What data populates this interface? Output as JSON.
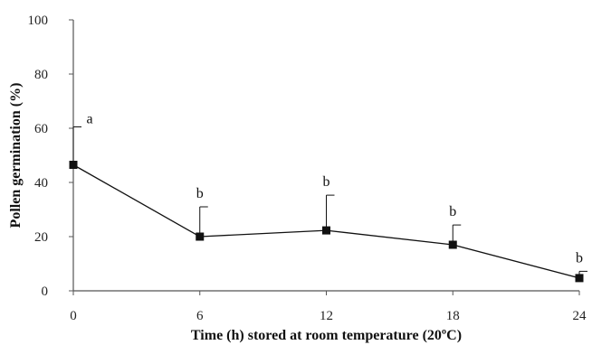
{
  "chart_data": {
    "type": "line",
    "xlabel": "Time (h) stored at room temperature (20ºC)",
    "ylabel": "Pollen germination (%)",
    "xlim": [
      0,
      24
    ],
    "ylim": [
      0,
      100
    ],
    "x_ticks": [
      0,
      6,
      12,
      18,
      24
    ],
    "y_ticks": [
      0,
      20,
      40,
      60,
      80,
      100
    ],
    "grid": false,
    "series": [
      {
        "x": [
          0,
          6,
          12,
          18,
          24
        ],
        "values": [
          46.5,
          20,
          22.3,
          17,
          4.7
        ],
        "error_upper": [
          14,
          11,
          13,
          7.3,
          2.5
        ],
        "labels": [
          "a",
          "b",
          "b",
          "b",
          "b"
        ],
        "color": "#111111",
        "marker": "square"
      }
    ]
  }
}
